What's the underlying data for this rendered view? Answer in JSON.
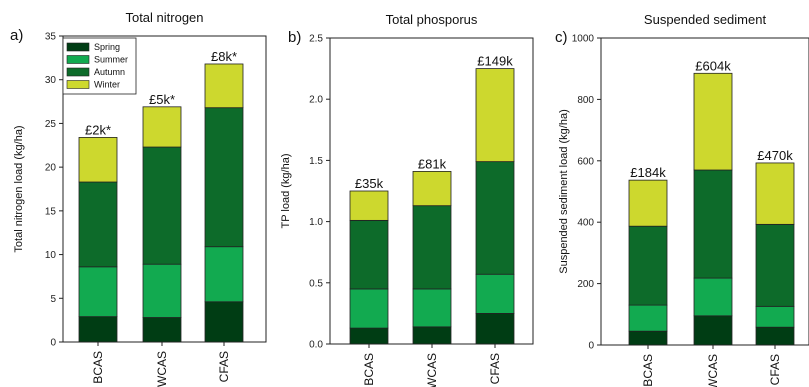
{
  "colors": {
    "Spring": "#003d14",
    "Summer": "#12aa50",
    "Autumn": "#0d6b2a",
    "Winter": "#cdd82e"
  },
  "legend": [
    "Spring",
    "Summer",
    "Autumn",
    "Winter"
  ],
  "chart_data": [
    {
      "type": "bar",
      "stacked": true,
      "letter": "a)",
      "title": "Total nitrogen",
      "ylabel": "Total nitrogen load (kg/ha)",
      "ylim": [
        0,
        35
      ],
      "yticks": [
        0,
        5,
        10,
        15,
        20,
        25,
        30,
        35
      ],
      "ytick_labels": [
        "0",
        "5",
        "10",
        "15",
        "20",
        "25",
        "30",
        "35"
      ],
      "categories": [
        "BCAS",
        "WCAS",
        "CFAS"
      ],
      "series": [
        {
          "name": "Spring",
          "values": [
            2.9,
            2.8,
            4.6
          ]
        },
        {
          "name": "Summer",
          "values": [
            5.7,
            6.1,
            6.3
          ]
        },
        {
          "name": "Autumn",
          "values": [
            9.7,
            13.4,
            15.9
          ]
        },
        {
          "name": "Winter",
          "values": [
            5.1,
            4.6,
            5.0
          ]
        }
      ],
      "annotations": [
        "£2k*",
        "£5k*",
        "£8k*"
      ],
      "legend": true
    },
    {
      "type": "bar",
      "stacked": true,
      "letter": "b)",
      "title": "Total phosporus",
      "ylabel": "TP load (kg/ha)",
      "ylim": [
        0,
        2.5
      ],
      "yticks": [
        0,
        0.5,
        1.0,
        1.5,
        2.0,
        2.5
      ],
      "ytick_labels": [
        "0.0",
        "0.5",
        "1.0",
        "1.5",
        "2.0",
        "2.5"
      ],
      "categories": [
        "BCAS",
        "WCAS",
        "CFAS"
      ],
      "series": [
        {
          "name": "Spring",
          "values": [
            0.13,
            0.14,
            0.25
          ]
        },
        {
          "name": "Summer",
          "values": [
            0.32,
            0.31,
            0.32
          ]
        },
        {
          "name": "Autumn",
          "values": [
            0.56,
            0.68,
            0.92
          ]
        },
        {
          "name": "Winter",
          "values": [
            0.24,
            0.28,
            0.76
          ]
        }
      ],
      "annotations": [
        "£35k",
        "£81k",
        "£149k"
      ],
      "legend": false
    },
    {
      "type": "bar",
      "stacked": true,
      "letter": "c)",
      "title": "Suspended sediment",
      "ylabel": "Suspended sediment load (kg/ha)",
      "ylim": [
        0,
        1000
      ],
      "yticks": [
        0,
        200,
        400,
        600,
        800,
        1000
      ],
      "ytick_labels": [
        "0",
        "200",
        "400",
        "600",
        "800",
        "1000"
      ],
      "categories": [
        "BCAS",
        "WCAS",
        "CFAS"
      ],
      "series": [
        {
          "name": "Spring",
          "values": [
            45,
            95,
            58
          ]
        },
        {
          "name": "Summer",
          "values": [
            85,
            123,
            68
          ]
        },
        {
          "name": "Autumn",
          "values": [
            257,
            352,
            267
          ]
        },
        {
          "name": "Winter",
          "values": [
            150,
            315,
            200
          ]
        }
      ],
      "annotations": [
        "£184k",
        "£604k",
        "£470k"
      ],
      "legend": false
    }
  ]
}
